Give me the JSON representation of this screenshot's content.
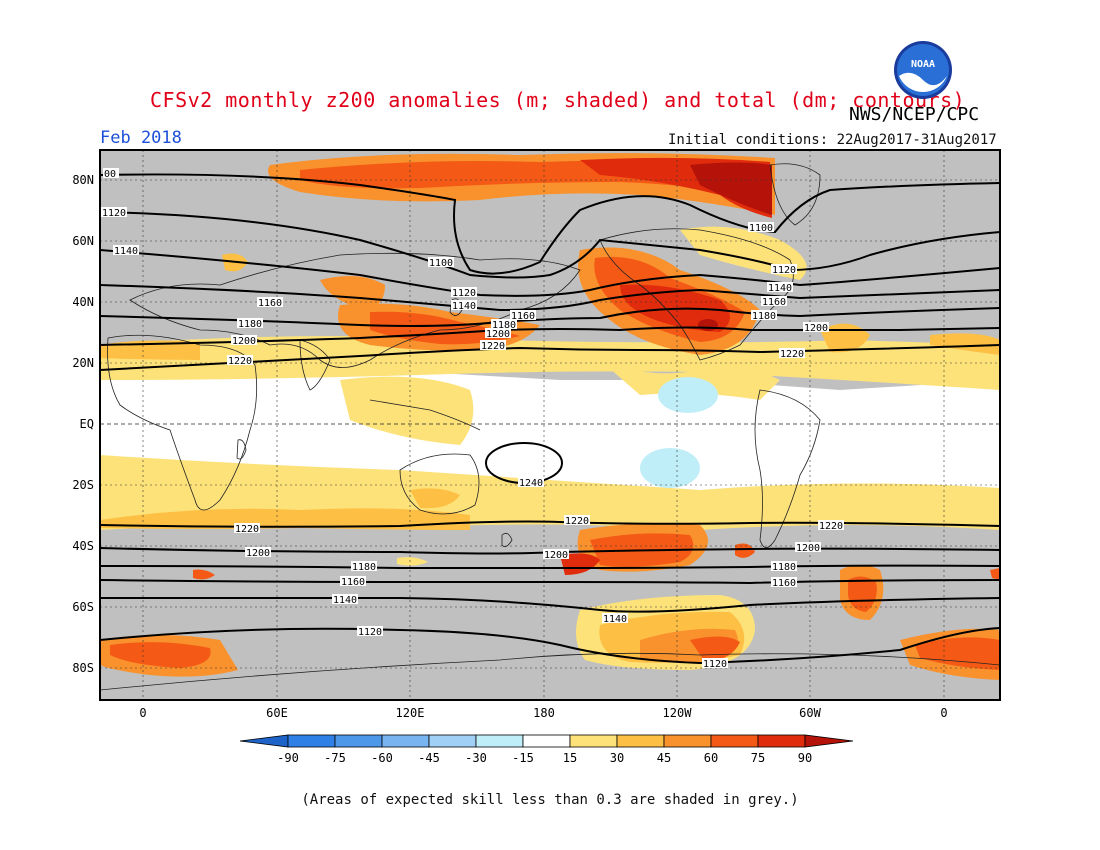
{
  "header": {
    "title": "CFSv2 monthly z200 anomalies (m; shaded) and total (dm; contours)",
    "agency": "NWS/NCEP/CPC",
    "month": "Feb 2018",
    "initial_conditions": "Initial conditions: 22Aug2017-31Aug2017",
    "logo_text": "NOAA"
  },
  "map": {
    "lat_labels": [
      "80N",
      "60N",
      "40N",
      "20N",
      "EQ",
      "20S",
      "40S",
      "60S",
      "80S"
    ],
    "lon_labels": [
      "0",
      "60E",
      "120E",
      "180",
      "120W",
      "60W",
      "0"
    ],
    "contour_labels": [
      "1100",
      "1120",
      "1140",
      "1160",
      "1180",
      "1200",
      "1220",
      "1240",
      "00"
    ],
    "skill_mask_color": "#c0c0c0"
  },
  "legend": {
    "ticks": [
      "-90",
      "-75",
      "-60",
      "-45",
      "-30",
      "-15",
      "15",
      "30",
      "45",
      "60",
      "75",
      "90"
    ],
    "colors": [
      "#1e64c8",
      "#2f80e6",
      "#4e98ea",
      "#78b4f0",
      "#a0d0f5",
      "#c0eef8",
      "#ffffff",
      "#fde27a",
      "#fdc044",
      "#f9922c",
      "#f45a16",
      "#e02b0c",
      "#b5120a"
    ]
  },
  "footnote": "(Areas of expected skill less than 0.3 are shaded in grey.)"
}
